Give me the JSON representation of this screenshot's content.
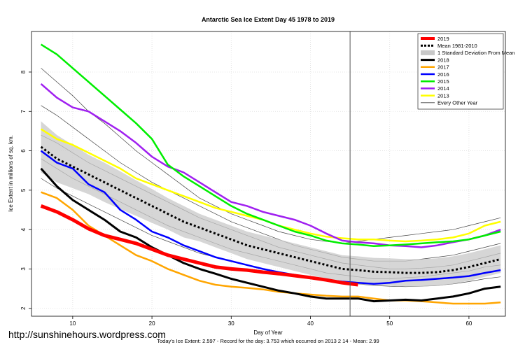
{
  "chart_data": {
    "type": "line",
    "title": "Antarctic Sea Ice Extent Day 45 1978 to 2019",
    "x_label": "Day of Year",
    "y_label": "Ice Extent in millions of sq. km.",
    "footer": "Today's Ice Extent: 2.597  - Record for the day: 3.753 which occurred on 2013 2 14  - Mean: 2.99",
    "watermark": "http://sunshinehours.wordpress.com",
    "xlim": [
      4.8,
      64.6
    ],
    "ylim": [
      1.8,
      9.03
    ],
    "xticks": [
      10,
      20,
      30,
      40,
      50,
      60
    ],
    "yticks": [
      2,
      3,
      4,
      5,
      6,
      7,
      8
    ],
    "grid": true,
    "legend": "top-right",
    "vline": 45,
    "x": [
      6,
      8,
      10,
      12,
      14,
      16,
      18,
      20,
      22,
      24,
      26,
      28,
      30,
      32,
      34,
      36,
      38,
      40,
      42,
      44,
      46,
      48,
      50,
      52,
      54,
      56,
      58,
      60,
      62,
      64
    ],
    "band": {
      "name": "1 Standard Deviation From Mean",
      "color": "#c8c8c8",
      "upper": [
        6.75,
        6.4,
        6.15,
        5.9,
        5.7,
        5.48,
        5.25,
        5.03,
        4.8,
        4.6,
        4.4,
        4.25,
        4.1,
        3.95,
        3.85,
        3.75,
        3.65,
        3.55,
        3.45,
        3.35,
        3.32,
        3.28,
        3.27,
        3.25,
        3.25,
        3.27,
        3.32,
        3.4,
        3.5,
        3.6
      ],
      "lower": [
        5.45,
        5.2,
        5.05,
        4.9,
        4.7,
        4.52,
        4.35,
        4.17,
        4.0,
        3.8,
        3.7,
        3.55,
        3.4,
        3.25,
        3.15,
        3.05,
        2.95,
        2.85,
        2.75,
        2.65,
        2.62,
        2.58,
        2.57,
        2.55,
        2.55,
        2.57,
        2.62,
        2.7,
        2.8,
        2.9
      ]
    },
    "background_series": {
      "name": "Every Other Year",
      "color": "#444444",
      "lines": [
        [
          8.1,
          7.75,
          7.4,
          7.0,
          6.7,
          6.35,
          6.0,
          5.7,
          5.4,
          5.1,
          4.8,
          4.6,
          4.4,
          4.25,
          4.1,
          3.95,
          3.85,
          3.75,
          3.7,
          3.65,
          3.7,
          3.75,
          3.8,
          3.85,
          3.9,
          3.95,
          4.0,
          4.1,
          4.2,
          4.3
        ],
        [
          7.15,
          6.9,
          6.6,
          6.3,
          6.0,
          5.7,
          5.45,
          5.2,
          5.0,
          4.8,
          4.6,
          4.4,
          4.2,
          4.05,
          3.9,
          3.75,
          3.6,
          3.5,
          3.4,
          3.3,
          3.25,
          3.2,
          3.2,
          3.2,
          3.25,
          3.3,
          3.35,
          3.45,
          3.55,
          3.65
        ],
        [
          5.8,
          5.55,
          5.3,
          5.1,
          4.9,
          4.7,
          4.5,
          4.3,
          4.1,
          3.95,
          3.8,
          3.65,
          3.5,
          3.4,
          3.3,
          3.2,
          3.1,
          3.0,
          2.9,
          2.85,
          2.8,
          2.75,
          2.75,
          2.78,
          2.8,
          2.85,
          2.9,
          2.95,
          3.05,
          3.1
        ],
        [
          6.4,
          6.2,
          5.95,
          5.7,
          5.5,
          5.3,
          5.1,
          4.9,
          4.7,
          4.5,
          4.3,
          4.15,
          4.0,
          3.85,
          3.7,
          3.55,
          3.45,
          3.35,
          3.25,
          3.15,
          3.1,
          3.05,
          3.0,
          3.0,
          3.02,
          3.05,
          3.1,
          3.2,
          3.3,
          3.4
        ],
        [
          5.3,
          5.05,
          4.85,
          4.65,
          4.45,
          4.25,
          4.05,
          3.85,
          3.7,
          3.55,
          3.4,
          3.3,
          3.2,
          3.1,
          3.0,
          2.92,
          2.85,
          2.8,
          2.72,
          2.68,
          2.62,
          2.58,
          2.56,
          2.55,
          2.56,
          2.58,
          2.62,
          2.68,
          2.75,
          2.8
        ]
      ]
    },
    "series": [
      {
        "name": "2019",
        "color": "#ff0000",
        "width": 5,
        "values": [
          4.6,
          4.45,
          4.25,
          4.02,
          3.85,
          3.75,
          3.65,
          3.5,
          3.35,
          3.25,
          3.15,
          3.05,
          3.0,
          2.97,
          2.92,
          2.88,
          2.83,
          2.78,
          2.72,
          2.65,
          2.6,
          null,
          null,
          null,
          null,
          null,
          null,
          null,
          null,
          null
        ]
      },
      {
        "name": "Mean 1981-2010",
        "color": "#000000",
        "width": 3,
        "dashed": true,
        "values": [
          6.1,
          5.8,
          5.6,
          5.4,
          5.2,
          5.0,
          4.8,
          4.6,
          4.4,
          4.2,
          4.05,
          3.9,
          3.75,
          3.6,
          3.5,
          3.4,
          3.3,
          3.2,
          3.1,
          3.0,
          2.97,
          2.93,
          2.92,
          2.9,
          2.9,
          2.92,
          2.97,
          3.05,
          3.15,
          3.25
        ]
      },
      {
        "name": "2018",
        "color": "#000000",
        "width": 3,
        "values": [
          5.55,
          5.1,
          4.75,
          4.5,
          4.25,
          3.95,
          3.8,
          3.55,
          3.35,
          3.15,
          3.0,
          2.88,
          2.75,
          2.65,
          2.55,
          2.45,
          2.38,
          2.3,
          2.25,
          2.25,
          2.25,
          2.18,
          2.2,
          2.22,
          2.2,
          2.25,
          2.3,
          2.38,
          2.5,
          2.55
        ]
      },
      {
        "name": "2017",
        "color": "#ffa500",
        "width": 2.5,
        "values": [
          4.95,
          4.8,
          4.5,
          4.1,
          3.85,
          3.6,
          3.35,
          3.2,
          3.0,
          2.85,
          2.7,
          2.6,
          2.55,
          2.52,
          2.48,
          2.42,
          2.38,
          2.35,
          2.32,
          2.3,
          2.3,
          2.25,
          2.2,
          2.2,
          2.18,
          2.15,
          2.12,
          2.12,
          2.12,
          2.15
        ]
      },
      {
        "name": "2016",
        "color": "#0000ff",
        "width": 2.5,
        "values": [
          6.0,
          5.7,
          5.55,
          5.15,
          4.95,
          4.5,
          4.25,
          3.95,
          3.8,
          3.6,
          3.45,
          3.3,
          3.2,
          3.1,
          3.0,
          2.92,
          2.85,
          2.78,
          2.72,
          2.68,
          2.65,
          2.62,
          2.65,
          2.7,
          2.72,
          2.75,
          2.78,
          2.82,
          2.9,
          2.97
        ]
      },
      {
        "name": "2015",
        "color": "#00ee00",
        "width": 2.5,
        "values": [
          8.7,
          8.45,
          8.1,
          7.75,
          7.4,
          7.05,
          6.7,
          6.3,
          5.65,
          5.35,
          5.1,
          4.85,
          4.6,
          4.4,
          4.25,
          4.1,
          3.95,
          3.85,
          3.72,
          3.65,
          3.62,
          3.58,
          3.6,
          3.62,
          3.65,
          3.68,
          3.7,
          3.75,
          3.85,
          3.95
        ]
      },
      {
        "name": "2014",
        "color": "#a020f0",
        "width": 2.5,
        "values": [
          7.7,
          7.35,
          7.1,
          7.0,
          6.75,
          6.5,
          6.2,
          5.85,
          5.6,
          5.45,
          5.2,
          4.95,
          4.7,
          4.6,
          4.45,
          4.35,
          4.25,
          4.1,
          3.9,
          3.72,
          3.68,
          3.65,
          3.6,
          3.58,
          3.55,
          3.6,
          3.68,
          3.75,
          3.85,
          4.0
        ]
      },
      {
        "name": "2013",
        "color": "#ffff00",
        "width": 2.5,
        "values": [
          6.55,
          6.3,
          6.15,
          5.95,
          5.75,
          5.55,
          5.3,
          5.15,
          5.0,
          4.85,
          4.7,
          4.55,
          4.45,
          4.35,
          4.25,
          4.1,
          4.0,
          3.9,
          3.82,
          3.78,
          3.75,
          3.75,
          3.72,
          3.7,
          3.72,
          3.75,
          3.8,
          3.9,
          4.1,
          4.2
        ]
      }
    ]
  }
}
